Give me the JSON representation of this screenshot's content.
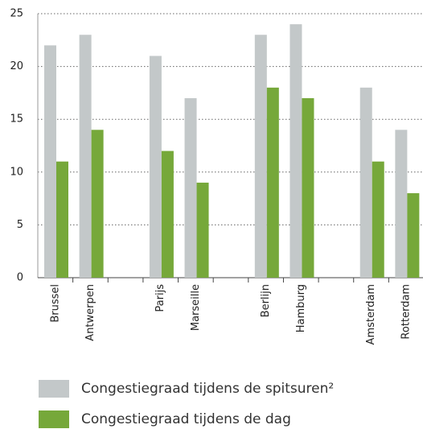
{
  "chart_data": {
    "type": "bar",
    "categories": [
      "Brussel",
      "Antwerpen",
      null,
      "Parijs",
      "Marseille",
      null,
      "Berlijn",
      "Hamburg",
      null,
      "Amsterdam",
      "Rotterdam"
    ],
    "series": [
      {
        "name": "Congestiegraad tijdens de spitsuren²",
        "color": "#c3c8c9",
        "values": [
          22,
          23,
          null,
          21,
          17,
          null,
          23,
          24,
          null,
          18,
          14
        ]
      },
      {
        "name": "Congestiegraad tijdens de dag",
        "color": "#76a83a",
        "values": [
          11,
          14,
          null,
          12,
          9,
          null,
          18,
          17,
          null,
          11,
          8
        ]
      }
    ],
    "ylim": [
      0,
      25
    ],
    "yticks": [
      0,
      5,
      10,
      15,
      20,
      25
    ],
    "grid": true
  }
}
